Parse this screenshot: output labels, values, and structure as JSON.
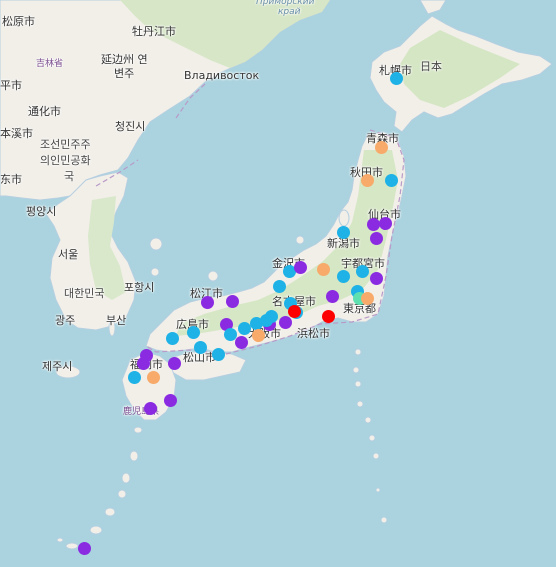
{
  "map": {
    "colors": {
      "water": "#aad3df",
      "land": "#f2efe9",
      "forest": "#cfe3bf",
      "border": "#b99ac8",
      "violet": "#8a2be2",
      "cyan": "#1eb2e6",
      "orange": "#f7aa6a",
      "red": "#ff0000",
      "teal": "#5fe0b0"
    },
    "labels": [
      {
        "text": "松原市",
        "type": "city"
      },
      {
        "text": "吉林省",
        "type": "pref"
      },
      {
        "text": "牡丹江市",
        "type": "city"
      },
      {
        "text": "Приморский",
        "type": "sea"
      },
      {
        "text": "край",
        "type": "sea"
      },
      {
        "text": "延边州 연",
        "type": "city"
      },
      {
        "text": "변주",
        "type": "city"
      },
      {
        "text": "Владивосток",
        "type": "city"
      },
      {
        "text": "平市",
        "type": "city"
      },
      {
        "text": "通化市",
        "type": "city"
      },
      {
        "text": "本溪市",
        "type": "city"
      },
      {
        "text": "청진시",
        "type": "city"
      },
      {
        "text": "조선민주주",
        "type": "country"
      },
      {
        "text": "의인민공화",
        "type": "country"
      },
      {
        "text": "국",
        "type": "country"
      },
      {
        "text": "东市",
        "type": "city"
      },
      {
        "text": "평양시",
        "type": "city"
      },
      {
        "text": "서울",
        "type": "city"
      },
      {
        "text": "대한민국",
        "type": "country"
      },
      {
        "text": "포항시",
        "type": "city"
      },
      {
        "text": "광주",
        "type": "city"
      },
      {
        "text": "부산",
        "type": "city"
      },
      {
        "text": "제주시",
        "type": "city"
      },
      {
        "text": "札幌市",
        "type": "city"
      },
      {
        "text": "日本",
        "type": "country"
      },
      {
        "text": "青森市",
        "type": "city"
      },
      {
        "text": "秋田市",
        "type": "city"
      },
      {
        "text": "仙台市",
        "type": "city"
      },
      {
        "text": "新潟市",
        "type": "city"
      },
      {
        "text": "金沢市",
        "type": "city"
      },
      {
        "text": "宇都宮市",
        "type": "city"
      },
      {
        "text": "松江市",
        "type": "city"
      },
      {
        "text": "名古屋市",
        "type": "city"
      },
      {
        "text": "東京都",
        "type": "city"
      },
      {
        "text": "広島市",
        "type": "city"
      },
      {
        "text": "浜松市",
        "type": "city"
      },
      {
        "text": "大阪市",
        "type": "city"
      },
      {
        "text": "松山市",
        "type": "city"
      },
      {
        "text": "福岡市",
        "type": "city"
      },
      {
        "text": "鹿児島県",
        "type": "pref"
      }
    ],
    "markers": [
      {
        "color": "cyan"
      },
      {
        "color": "orange"
      },
      {
        "color": "orange"
      },
      {
        "color": "cyan"
      },
      {
        "color": "violet"
      },
      {
        "color": "violet"
      },
      {
        "color": "violet"
      },
      {
        "color": "cyan"
      },
      {
        "color": "cyan"
      },
      {
        "color": "violet"
      },
      {
        "color": "orange"
      },
      {
        "color": "cyan"
      },
      {
        "color": "cyan"
      },
      {
        "color": "violet"
      },
      {
        "color": "cyan"
      },
      {
        "color": "cyan"
      },
      {
        "color": "teal"
      },
      {
        "color": "orange"
      },
      {
        "color": "cyan"
      },
      {
        "color": "violet"
      },
      {
        "color": "cyan"
      },
      {
        "color": "red"
      },
      {
        "color": "red"
      },
      {
        "color": "violet"
      },
      {
        "color": "violet"
      },
      {
        "color": "violet"
      },
      {
        "color": "cyan"
      },
      {
        "color": "violet"
      },
      {
        "color": "cyan"
      },
      {
        "color": "cyan"
      },
      {
        "color": "violet"
      },
      {
        "color": "orange"
      },
      {
        "color": "cyan"
      },
      {
        "color": "cyan"
      },
      {
        "color": "violet"
      },
      {
        "color": "cyan"
      },
      {
        "color": "cyan"
      },
      {
        "color": "cyan"
      },
      {
        "color": "cyan"
      },
      {
        "color": "violet"
      },
      {
        "color": "violet"
      },
      {
        "color": "violet"
      },
      {
        "color": "cyan"
      },
      {
        "color": "orange"
      },
      {
        "color": "violet"
      },
      {
        "color": "violet"
      },
      {
        "color": "violet"
      }
    ]
  }
}
